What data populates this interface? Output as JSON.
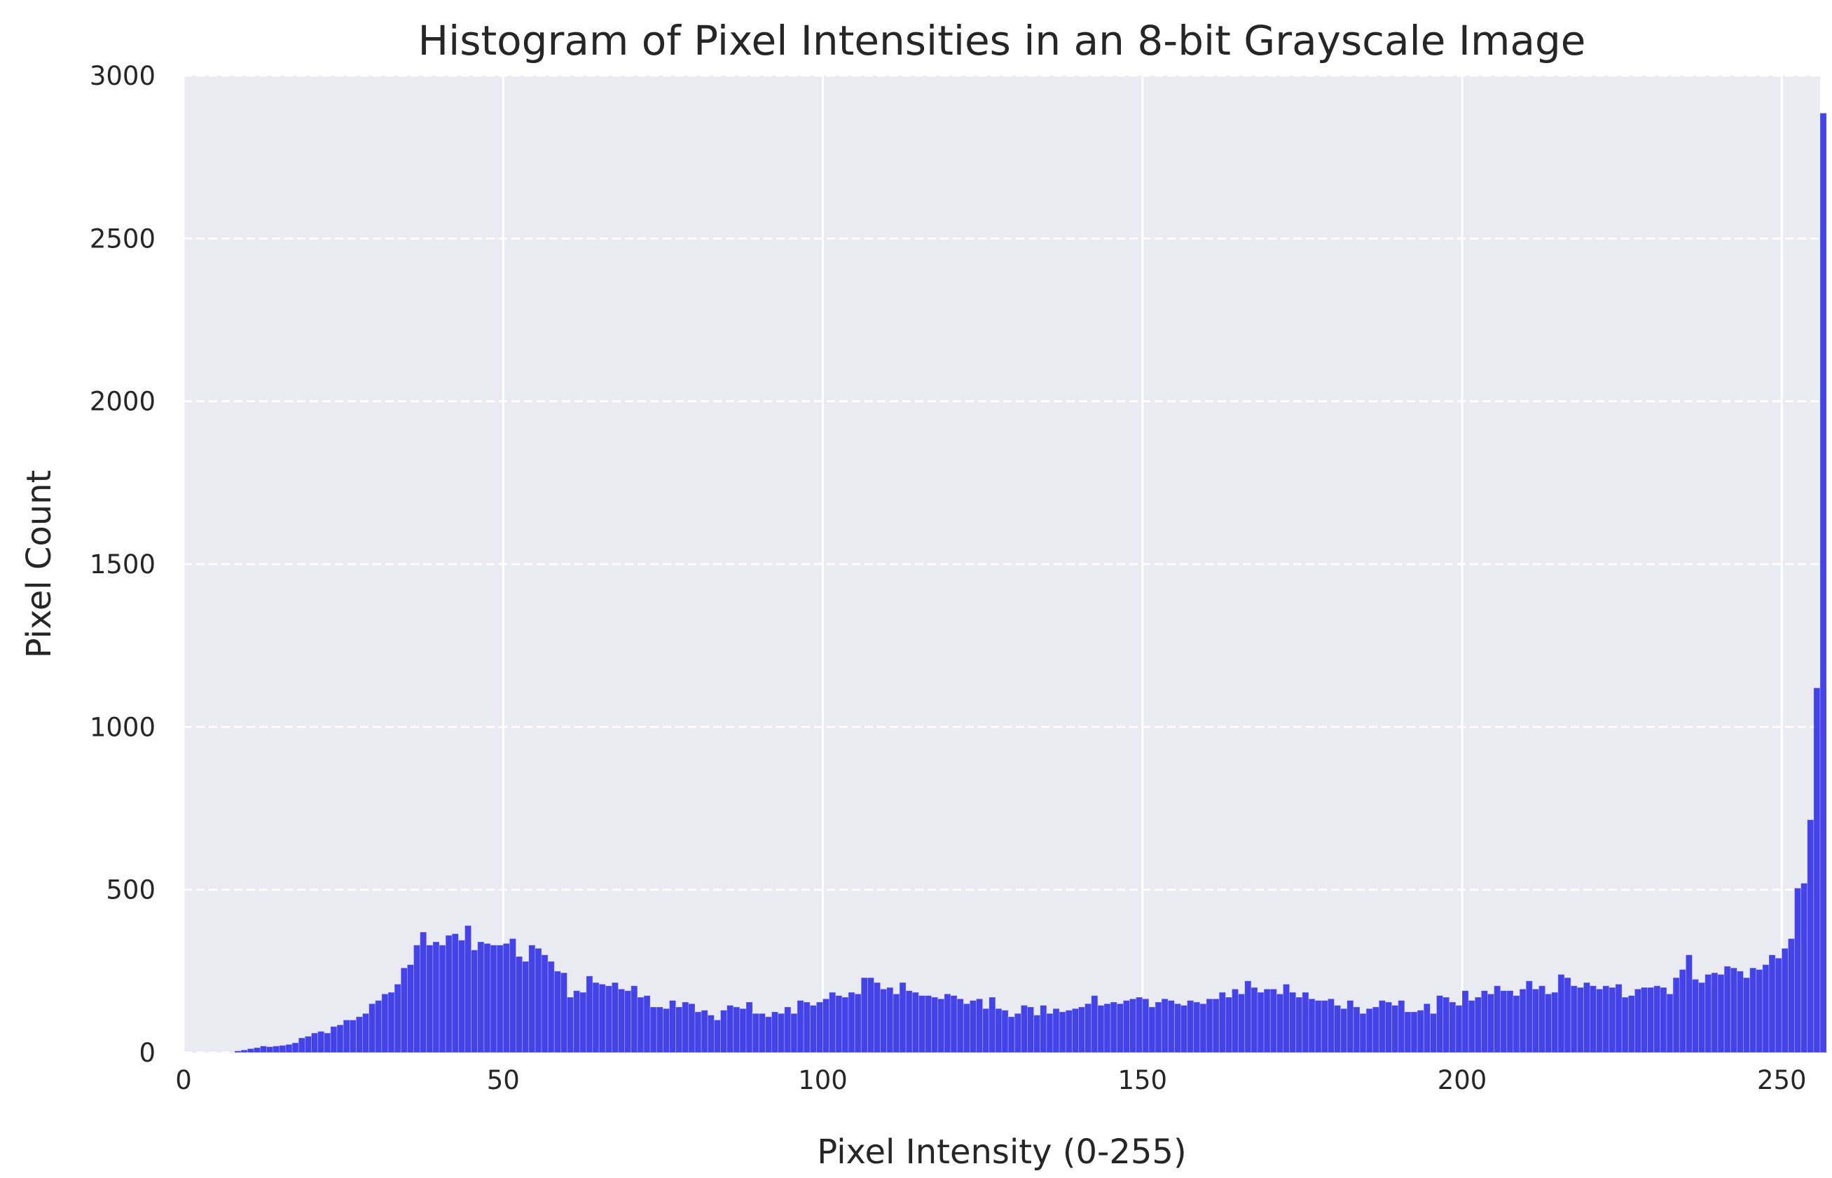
{
  "chart_data": {
    "type": "bar",
    "title": "Histogram of Pixel Intensities in an 8-bit Grayscale Image",
    "xlabel": "Pixel Intensity (0-255)",
    "ylabel": "Pixel Count",
    "xlim": [
      0,
      255
    ],
    "ylim": [
      0,
      3000
    ],
    "xticks": [
      0,
      50,
      100,
      150,
      200,
      250
    ],
    "yticks": [
      0,
      500,
      1000,
      1500,
      2000,
      2500,
      3000
    ],
    "grid": {
      "x": "solid",
      "y": "dashed"
    },
    "background_color": "#eaeaf2",
    "bar_color": "#3a3ae8",
    "x_start": 0,
    "values": [
      0,
      0,
      0,
      0,
      0,
      0,
      0,
      0,
      5,
      8,
      12,
      15,
      20,
      18,
      20,
      22,
      25,
      30,
      45,
      50,
      60,
      65,
      60,
      80,
      85,
      100,
      100,
      110,
      120,
      150,
      160,
      180,
      185,
      210,
      260,
      270,
      330,
      370,
      330,
      340,
      330,
      360,
      365,
      345,
      390,
      315,
      340,
      335,
      330,
      330,
      335,
      350,
      295,
      280,
      330,
      320,
      300,
      280,
      250,
      245,
      170,
      190,
      185,
      235,
      215,
      210,
      205,
      215,
      195,
      190,
      205,
      170,
      175,
      140,
      140,
      135,
      160,
      140,
      155,
      150,
      125,
      130,
      115,
      100,
      130,
      145,
      140,
      135,
      155,
      120,
      120,
      110,
      125,
      120,
      140,
      120,
      160,
      155,
      145,
      155,
      165,
      185,
      175,
      170,
      185,
      180,
      230,
      230,
      215,
      195,
      200,
      180,
      215,
      190,
      185,
      175,
      175,
      170,
      165,
      180,
      175,
      165,
      150,
      160,
      165,
      135,
      170,
      135,
      130,
      110,
      120,
      145,
      140,
      115,
      145,
      120,
      135,
      125,
      130,
      135,
      140,
      150,
      175,
      145,
      150,
      155,
      150,
      160,
      165,
      170,
      165,
      140,
      155,
      165,
      160,
      150,
      145,
      160,
      155,
      150,
      165,
      165,
      185,
      170,
      195,
      180,
      220,
      200,
      185,
      195,
      195,
      180,
      210,
      185,
      170,
      185,
      165,
      160,
      160,
      165,
      145,
      135,
      160,
      140,
      120,
      135,
      140,
      160,
      155,
      145,
      160,
      125,
      125,
      130,
      150,
      120,
      175,
      170,
      155,
      145,
      190,
      160,
      170,
      190,
      180,
      205,
      190,
      190,
      175,
      195,
      220,
      195,
      205,
      180,
      185,
      240,
      230,
      205,
      200,
      215,
      205,
      195,
      205,
      200,
      210,
      170,
      175,
      195,
      200,
      200,
      205,
      200,
      180,
      230,
      255,
      300,
      225,
      215,
      240,
      245,
      240,
      265,
      260,
      250,
      230,
      260,
      255,
      270,
      300,
      290,
      320,
      350,
      505,
      520,
      715,
      1120,
      2885
    ]
  }
}
